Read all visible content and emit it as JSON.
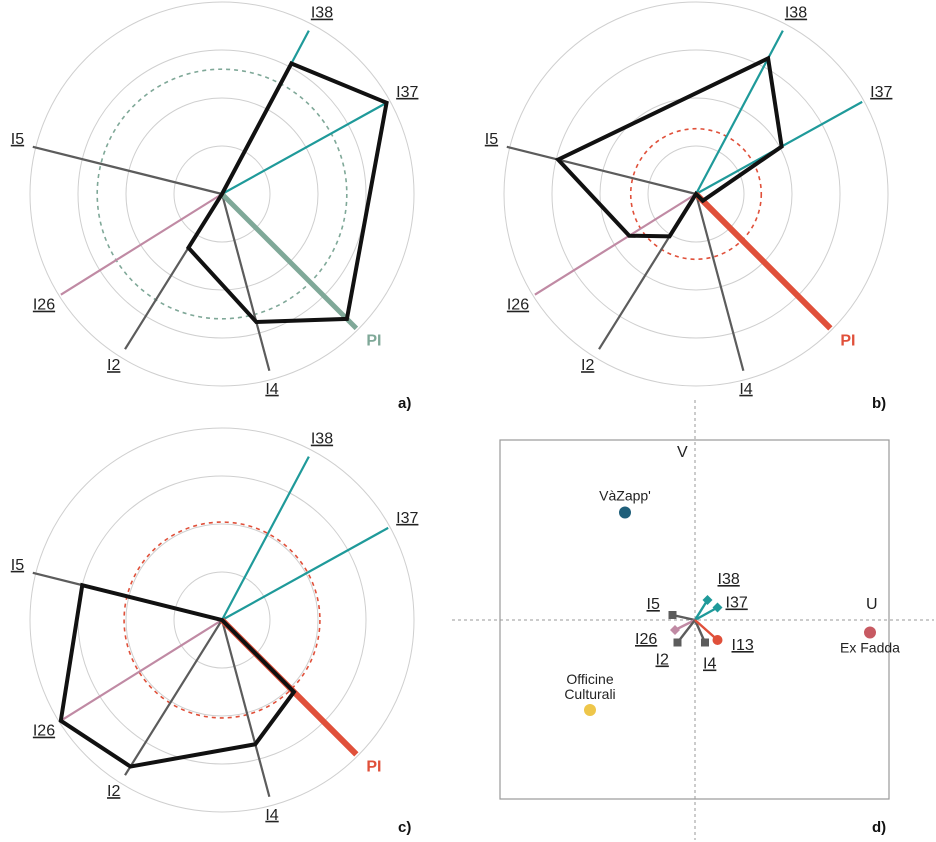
{
  "colors": {
    "teal": "#1f9a9a",
    "gray": "#5c5c5c",
    "pink": "#c08aa4",
    "sage": "#7fa898",
    "red": "#e0503a",
    "black": "#111111",
    "ring": "#cfcfcf",
    "navy": "#1f5f7a",
    "rose": "#c75a62",
    "yellow": "#eec64a",
    "frame": "#9a9a9a"
  },
  "chart_data": [
    {
      "type": "radar",
      "panel": "a)",
      "axes": [
        "I38",
        "I37",
        "I5",
        "I26",
        "I2",
        "I4",
        "PI"
      ],
      "highlight_axis": "PI",
      "highlight_color": "sage",
      "polygon_values": {
        "I38": 0.77,
        "I37": 0.98,
        "PI": 0.92,
        "I4": 0.69,
        "I2": 0.33,
        "I26": 0.0,
        "I5": 0.0
      },
      "reference_circle": 0.65,
      "reference_color": "sage",
      "ring_count": 4
    },
    {
      "type": "radar",
      "panel": "b)",
      "axes": [
        "I38",
        "I37",
        "I5",
        "I26",
        "I2",
        "I4",
        "PI"
      ],
      "highlight_axis": "PI",
      "highlight_color": "red",
      "polygon_values": {
        "I38": 0.8,
        "I37": 0.51,
        "I5": 0.74,
        "I26": 0.41,
        "I2": 0.26,
        "I4": 0.0,
        "PI": 0.05
      },
      "reference_circle": 0.34,
      "reference_color": "red",
      "ring_count": 4
    },
    {
      "type": "radar",
      "panel": "c)",
      "axes": [
        "I38",
        "I37",
        "I5",
        "I26",
        "I2",
        "I4",
        "PI"
      ],
      "highlight_axis": "PI",
      "highlight_color": "red",
      "polygon_values": {
        "I38": 0.0,
        "I37": 0.0,
        "I5": 0.75,
        "I26": 0.99,
        "I2": 0.9,
        "I4": 0.67,
        "PI": 0.53
      },
      "reference_circle": 0.51,
      "reference_color": "red",
      "ring_count": 4
    },
    {
      "type": "scatter",
      "panel": "d)",
      "x_axis_label": "U",
      "y_axis_label": "V",
      "points": [
        {
          "label": "VàZapp'",
          "x": -0.28,
          "y": 0.43,
          "color": "navy"
        },
        {
          "label": "Ex Fadda",
          "x": 0.7,
          "y": -0.05,
          "color": "rose"
        },
        {
          "label": "Officine\nCulturali",
          "label_line1": "Officine",
          "label_line2": "Culturali",
          "x": -0.42,
          "y": -0.36,
          "color": "yellow"
        }
      ],
      "vectors": [
        {
          "label": "I38",
          "x": 0.05,
          "y": 0.08,
          "color": "teal",
          "marker": "diamond"
        },
        {
          "label": "I37",
          "x": 0.09,
          "y": 0.05,
          "color": "teal",
          "marker": "diamond"
        },
        {
          "label": "I5",
          "x": -0.09,
          "y": 0.02,
          "color": "gray",
          "marker": "square"
        },
        {
          "label": "I26",
          "x": -0.08,
          "y": -0.04,
          "color": "pink",
          "marker": "diamond"
        },
        {
          "label": "I2",
          "x": -0.07,
          "y": -0.09,
          "color": "gray",
          "marker": "square"
        },
        {
          "label": "I4",
          "x": 0.04,
          "y": -0.09,
          "color": "gray",
          "marker": "square"
        },
        {
          "label": "I13",
          "x": 0.09,
          "y": -0.08,
          "color": "red",
          "marker": "circle"
        }
      ]
    }
  ]
}
